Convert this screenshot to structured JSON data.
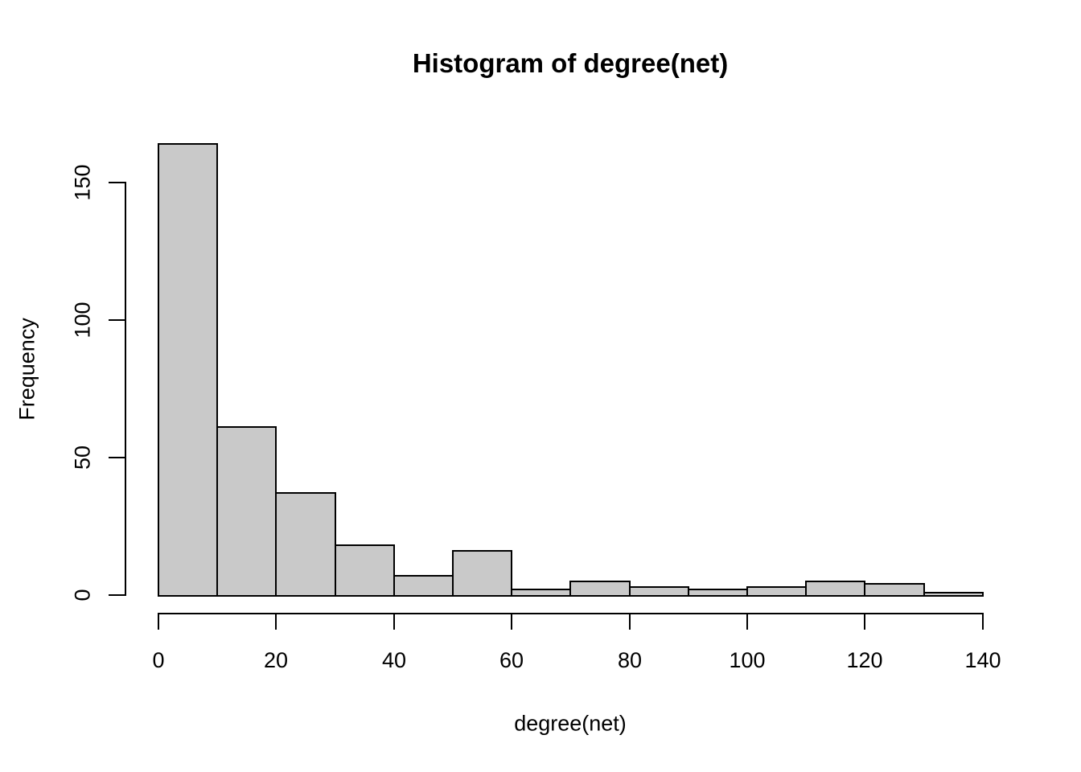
{
  "chart_data": {
    "type": "bar",
    "subtype": "histogram",
    "title": "Histogram of degree(net)",
    "xlabel": "degree(net)",
    "ylabel": "Frequency",
    "bins": {
      "start": 0,
      "bin_width": 10,
      "counts": [
        164,
        61,
        37,
        18,
        7,
        16,
        2,
        5,
        3,
        2,
        3,
        5,
        4,
        1
      ]
    },
    "x_ticks": [
      0,
      20,
      40,
      60,
      80,
      100,
      120,
      140
    ],
    "y_ticks": [
      0,
      50,
      100,
      150
    ],
    "xlim": [
      0,
      140
    ],
    "ylim": [
      0,
      164
    ],
    "grid": false,
    "legend": "none",
    "colors": {
      "bar_fill": "#c9c9c9",
      "bar_stroke": "#000000",
      "axis": "#000000",
      "text": "#000000",
      "background": "#ffffff"
    }
  }
}
